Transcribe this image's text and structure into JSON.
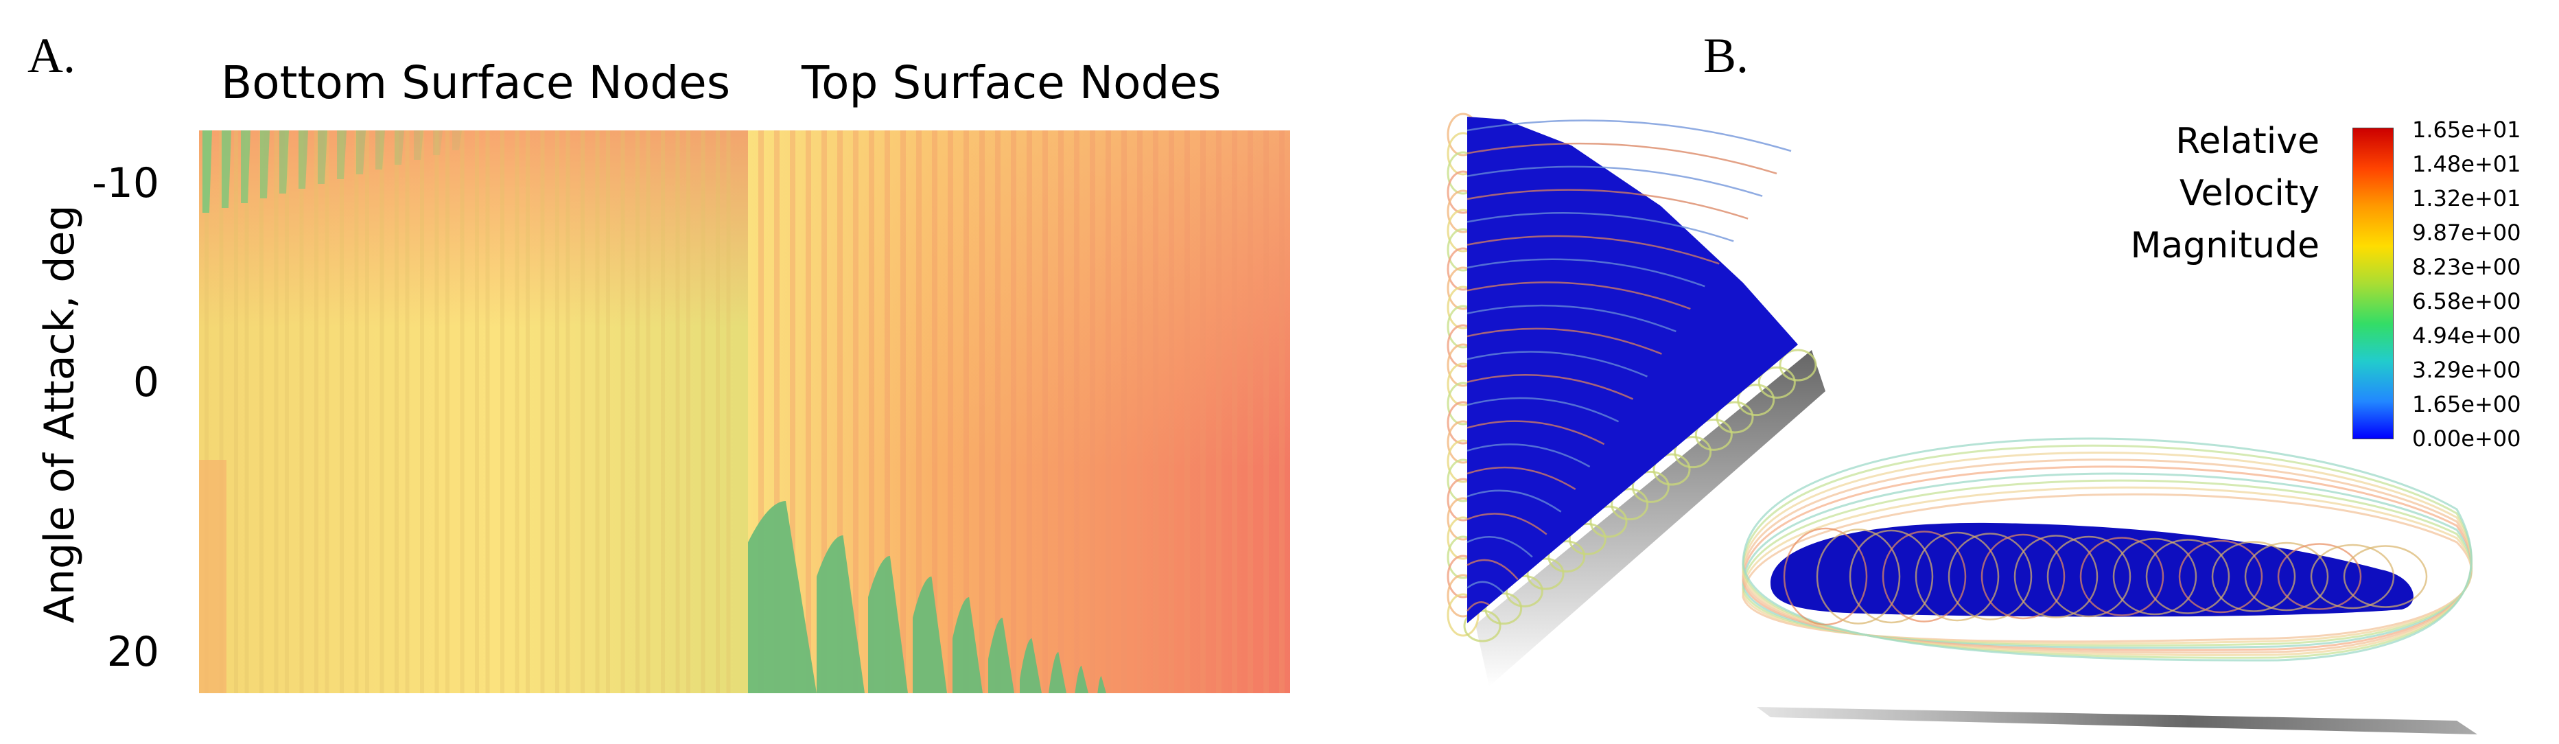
{
  "panel_a": {
    "label": "A.",
    "title_left": "Bottom Surface Nodes",
    "title_right": "Top Surface Nodes",
    "ylabel": "Angle of Attack, deg",
    "yticks": [
      "-10",
      "0",
      "20"
    ]
  },
  "panel_b": {
    "label": "B.",
    "legend": {
      "title_lines": [
        "Relative",
        "Velocity",
        "Magnitude"
      ],
      "ticks": [
        "1.65e+01",
        "1.48e+01",
        "1.32e+01",
        "9.87e+00",
        "8.23e+00",
        "6.58e+00",
        "4.94e+00",
        "3.29e+00",
        "1.65e+00",
        "0.00e+00"
      ],
      "colors": [
        "#cc0000",
        "#ff4400",
        "#ff9900",
        "#ffdd00",
        "#aadd33",
        "#33dd66",
        "#22cccc",
        "#2288ff",
        "#0000ff"
      ]
    }
  },
  "chart_data": {
    "type": "heatmap",
    "title": "",
    "xlabel": "",
    "ylabel": "Angle of Attack, deg",
    "yticks": [
      -10,
      0,
      20
    ],
    "x_groups": [
      "Bottom Surface Nodes",
      "Top Surface Nodes"
    ]
  }
}
